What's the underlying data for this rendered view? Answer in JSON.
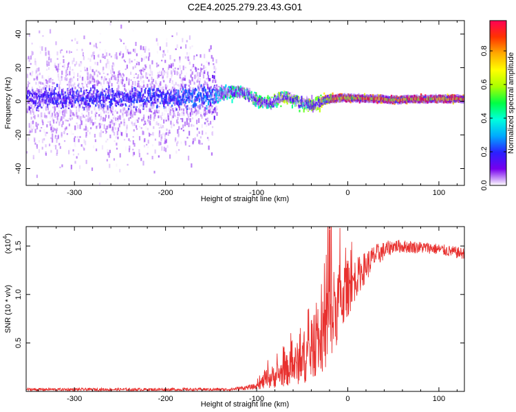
{
  "title": "C2E4.2025.279.23.43.G01",
  "colors": {
    "snr_line": "#e8302e",
    "axis": "#000000",
    "background": "#ffffff"
  },
  "chart_data": [
    {
      "type": "heatmap",
      "name": "spectrogram",
      "xlabel": "Height of straight line (km)",
      "ylabel": "Frequency (Hz)",
      "xlim": [
        -353,
        128
      ],
      "ylim": [
        -50,
        48
      ],
      "xticks": [
        -300,
        -200,
        -100,
        0,
        100
      ],
      "xtick_labels": [
        "-300",
        "-200",
        "-100",
        "0",
        "100"
      ],
      "yticks": [
        -40,
        -20,
        0,
        20,
        40
      ],
      "ytick_labels": [
        "-40",
        "-20",
        "0",
        "20",
        "40"
      ],
      "colorbar": {
        "label": "Normalized spectral amplitude",
        "range": [
          0,
          0.98
        ],
        "ticks": [
          0.0,
          0.2,
          0.4,
          0.6,
          0.8
        ],
        "tick_labels": [
          "0.0",
          "0.2",
          "0.4",
          "0.6",
          "0.8"
        ],
        "colormap": [
          "#ffffff",
          "#7700ee",
          "#2a20ff",
          "#00aaff",
          "#00ffdd",
          "#00ff44",
          "#aaff00",
          "#ffff00",
          "#ffaa00",
          "#ff3300",
          "#ff0055"
        ]
      },
      "signal_track": [
        {
          "x": -353,
          "f": 2,
          "spread": 40,
          "amp": 0.15
        },
        {
          "x": -300,
          "f": 2,
          "spread": 40,
          "amp": 0.18
        },
        {
          "x": -200,
          "f": 2,
          "spread": 40,
          "amp": 0.2
        },
        {
          "x": -150,
          "f": 3,
          "spread": 35,
          "amp": 0.25
        },
        {
          "x": -140,
          "f": 5,
          "spread": 10,
          "amp": 0.4
        },
        {
          "x": -120,
          "f": 6,
          "spread": 8,
          "amp": 0.45
        },
        {
          "x": -110,
          "f": 4,
          "spread": 8,
          "amp": 0.45
        },
        {
          "x": -100,
          "f": 0,
          "spread": 8,
          "amp": 0.5
        },
        {
          "x": -85,
          "f": -1,
          "spread": 8,
          "amp": 0.5
        },
        {
          "x": -70,
          "f": 3,
          "spread": 8,
          "amp": 0.55
        },
        {
          "x": -55,
          "f": 0,
          "spread": 8,
          "amp": 0.55
        },
        {
          "x": -40,
          "f": -3,
          "spread": 10,
          "amp": 0.55
        },
        {
          "x": -25,
          "f": 1,
          "spread": 4,
          "amp": 0.7
        },
        {
          "x": -10,
          "f": 2,
          "spread": 3,
          "amp": 0.85
        },
        {
          "x": 0,
          "f": 2,
          "spread": 3,
          "amp": 0.85
        },
        {
          "x": 50,
          "f": 1,
          "spread": 3,
          "amp": 0.9
        },
        {
          "x": 100,
          "f": 1.5,
          "spread": 3,
          "amp": 0.9
        },
        {
          "x": 128,
          "f": 1.5,
          "spread": 3,
          "amp": 0.9
        }
      ]
    },
    {
      "type": "line",
      "name": "snr",
      "xlabel": "Height of straight line (km)",
      "ylabel": "SNR (10 * v/v)",
      "multiplier_label": "(x10",
      "multiplier_exp": "4",
      "multiplier_close": ")",
      "xlim": [
        -353,
        128
      ],
      "ylim": [
        0,
        1.7
      ],
      "xticks": [
        -300,
        -200,
        -100,
        0,
        100
      ],
      "xtick_labels": [
        "-300",
        "-200",
        "-100",
        "0",
        "100"
      ],
      "yticks": [
        0.5,
        1.0,
        1.5
      ],
      "ytick_labels": [
        "0.5",
        "1.0",
        "1.5"
      ],
      "envelope": [
        {
          "x": -353,
          "mean": 0.02,
          "noise": 0.015
        },
        {
          "x": -130,
          "mean": 0.02,
          "noise": 0.015
        },
        {
          "x": -100,
          "mean": 0.05,
          "noise": 0.03
        },
        {
          "x": -90,
          "mean": 0.12,
          "noise": 0.1
        },
        {
          "x": -70,
          "mean": 0.2,
          "noise": 0.15
        },
        {
          "x": -50,
          "mean": 0.32,
          "noise": 0.25
        },
        {
          "x": -35,
          "mean": 0.45,
          "noise": 0.3
        },
        {
          "x": -25,
          "mean": 0.6,
          "noise": 0.4
        },
        {
          "x": -15,
          "mean": 0.85,
          "noise": 0.45
        },
        {
          "x": -5,
          "mean": 1.0,
          "noise": 0.35
        },
        {
          "x": 10,
          "mean": 1.18,
          "noise": 0.2
        },
        {
          "x": 30,
          "mean": 1.4,
          "noise": 0.12
        },
        {
          "x": 50,
          "mean": 1.5,
          "noise": 0.07
        },
        {
          "x": 90,
          "mean": 1.48,
          "noise": 0.06
        },
        {
          "x": 128,
          "mean": 1.42,
          "noise": 0.06
        }
      ]
    }
  ]
}
